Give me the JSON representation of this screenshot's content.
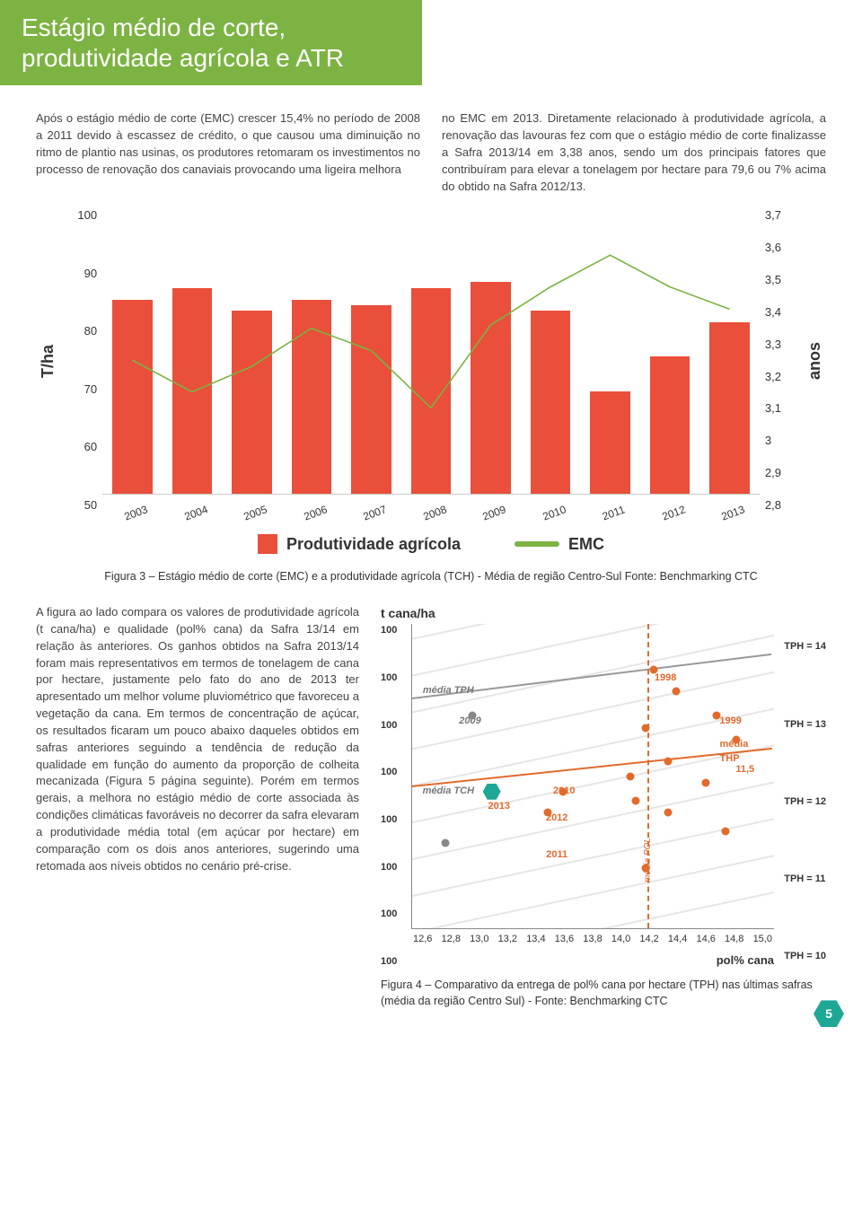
{
  "title": "Estágio médio de corte, produtividade agrícola e ATR",
  "para_left": "Após o estágio médio de corte (EMC) crescer 15,4% no período de 2008 a 2011 devido à escassez de crédito, o que causou uma diminuição no ritmo de plantio nas usinas, os produtores retomaram os investimentos no processo de renovação dos canaviais provocando uma ligeira melhora",
  "para_right": "no EMC em 2013. Diretamente relacionado à produtividade agrícola, a renovação das lavouras fez com que o estágio médio de corte finalizasse a Safra 2013/14 em 3,38 anos, sendo um dos principais fatores que contribuíram para elevar a tonelagem por hectare para 79,6 ou 7% acima do obtido na Safra 2012/13.",
  "main_chart": {
    "type": "bar+line",
    "bar_color": "#e94f3a",
    "line_color": "#7cb342",
    "bg": "#ffffff",
    "y_left_label": "T/ha",
    "y_right_label": "anos",
    "y_left_ticks": [
      "100",
      "90",
      "80",
      "70",
      "60",
      "50"
    ],
    "y_left_min": 50,
    "y_left_max": 100,
    "y_right_ticks": [
      "3,7",
      "3,6",
      "3,5",
      "3,4",
      "3,3",
      "3,2",
      "3,1",
      "3",
      "2,9",
      "2,8"
    ],
    "y_right_min": 2.8,
    "y_right_max": 3.7,
    "categories": [
      "2003",
      "2004",
      "2005",
      "2006",
      "2007",
      "2008",
      "2009",
      "2010",
      "2011",
      "2012",
      "2013"
    ],
    "bar_values": [
      84,
      86,
      82,
      84,
      83,
      86,
      87,
      82,
      68,
      74,
      80
    ],
    "line_values": [
      3.22,
      3.12,
      3.2,
      3.32,
      3.25,
      3.07,
      3.33,
      3.45,
      3.55,
      3.45,
      3.38
    ],
    "legend_bar": "Produtividade agrícola",
    "legend_line": "EMC"
  },
  "fig3_caption": "Figura 3 – Estágio médio de corte (EMC) e a produtividade agrícola (TCH) - Média de região Centro-Sul Fonte: Benchmarking CTC",
  "lower_para": "A figura ao lado compara os valores de produtividade agrícola (t cana/ha) e qualidade (pol% cana) da Safra 13/14 em relação às anteriores. Os ganhos obtidos na Safra 2013/14 foram mais representativos em termos de tonelagem de cana por hectare, justamente pelo fato do ano de 2013 ter apresentado um melhor volume pluviométrico que favoreceu a vegetação da cana. Em termos de concentração de açúcar, os resultados ficaram um pouco abaixo daqueles obtidos em safras anteriores seguindo a tendência de redução da qualidade em função do aumento da proporção de colheita mecanizada (Figura 5 página seguinte). Porém em termos gerais, a melhora no estágio médio de corte associada às condições climáticas favoráveis no decorrer da safra elevaram a produtividade média total (em açúcar por hectare) em comparação com os dois anos anteriores, sugerindo uma retomada aos níveis obtidos no cenário pré-crise.",
  "scatter": {
    "y_title": "t cana/ha",
    "y_ticks": [
      "100",
      "100",
      "100",
      "100",
      "100",
      "100",
      "100",
      "100"
    ],
    "x_ticks": [
      "12,6",
      "12,8",
      "13,0",
      "13,2",
      "13,4",
      "13,6",
      "13,8",
      "14,0",
      "14,2",
      "14,4",
      "14,6",
      "14,8",
      "15,0"
    ],
    "x_label": "pol% cana",
    "x_min": 12.6,
    "x_max": 15.0,
    "tph_labels": [
      "TPH = 14",
      "TPH = 13",
      "TPH = 12",
      "TPH = 11",
      "TPH = 10"
    ],
    "dot_color": "#e26a2c",
    "trend_color": "#e26a2c",
    "mean_color_gray": "#888888",
    "hex_color": "#1fa796",
    "annotations": {
      "media_tph": "média TPH",
      "media_tch": "média TCH",
      "media_pol": "média POL",
      "media_thp": "média THP",
      "thp_val": "11,5",
      "y1998": "1998",
      "y1999": "1999",
      "y2009": "2009",
      "y2010": "2010",
      "y2011": "2011",
      "y2012": "2012",
      "y2013": "2013"
    },
    "points": [
      {
        "x": 12.82,
        "y": 0.72,
        "gray": true
      },
      {
        "x": 14.2,
        "y": 0.15
      },
      {
        "x": 14.35,
        "y": 0.22
      },
      {
        "x": 14.62,
        "y": 0.3
      },
      {
        "x": 14.15,
        "y": 0.34
      },
      {
        "x": 14.75,
        "y": 0.38
      },
      {
        "x": 14.3,
        "y": 0.45
      },
      {
        "x": 14.05,
        "y": 0.5
      },
      {
        "x": 14.55,
        "y": 0.52
      },
      {
        "x": 14.08,
        "y": 0.58
      },
      {
        "x": 14.3,
        "y": 0.62
      },
      {
        "x": 14.68,
        "y": 0.68
      },
      {
        "x": 14.15,
        "y": 0.8
      },
      {
        "x": 13.0,
        "y": 0.3,
        "gray": true
      },
      {
        "x": 13.6,
        "y": 0.55
      },
      {
        "x": 13.5,
        "y": 0.62
      }
    ]
  },
  "fig4_caption": "Figura 4 – Comparativo da entrega de pol% cana por hectare (TPH) nas últimas safras (média da região Centro Sul) - Fonte: Benchmarking CTC",
  "page_number": "5"
}
